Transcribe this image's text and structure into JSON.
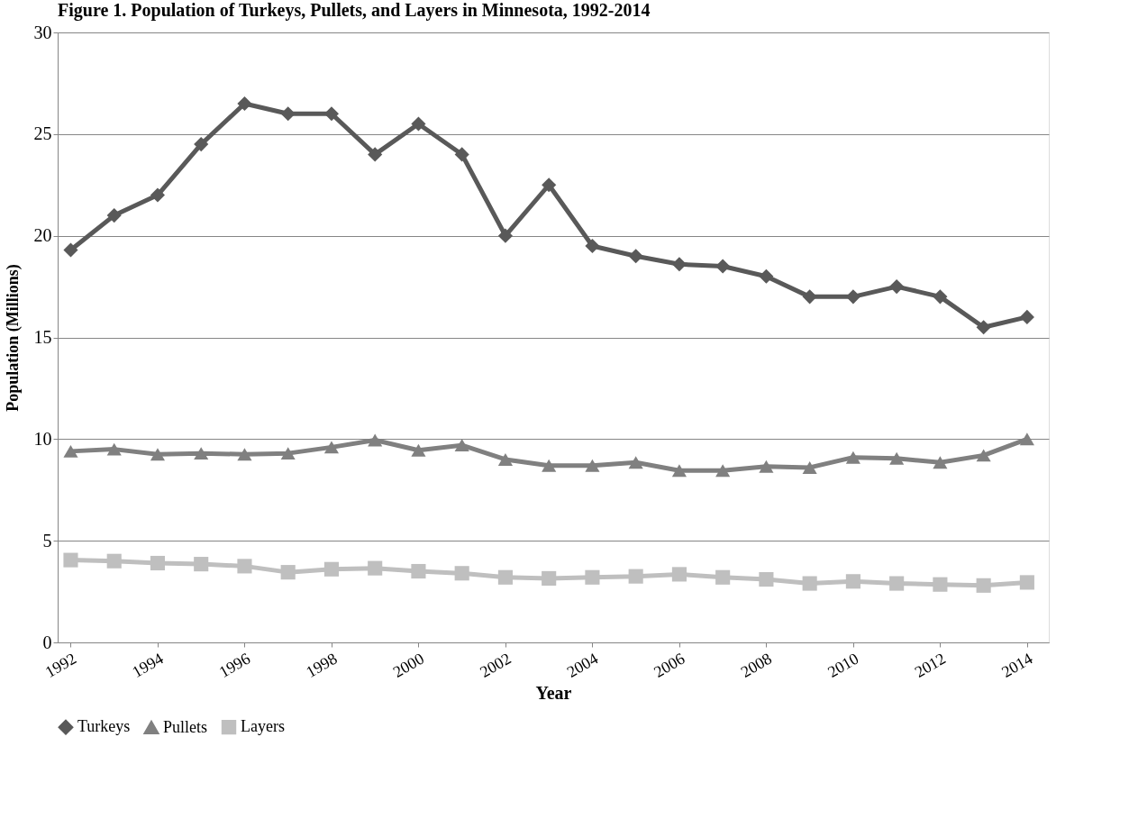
{
  "chart_data": {
    "type": "line",
    "title": "Figure 1. Population of Turkeys, Pullets, and Layers in Minnesota, 1992-2014",
    "xlabel": "Year",
    "ylabel": "Population (Millions)",
    "x": [
      1992,
      1993,
      1994,
      1995,
      1996,
      1997,
      1998,
      1999,
      2000,
      2001,
      2002,
      2003,
      2004,
      2005,
      2006,
      2007,
      2008,
      2009,
      2010,
      2011,
      2012,
      2013,
      2014
    ],
    "series": [
      {
        "name": "Turkeys",
        "color": "#595959",
        "marker": "diamond",
        "values": [
          19.3,
          21,
          22,
          24.5,
          26.5,
          26,
          26,
          24,
          25.5,
          24,
          20,
          22.5,
          19.5,
          19,
          18.6,
          18.5,
          18,
          17,
          17,
          17.5,
          17,
          15.5,
          16
        ]
      },
      {
        "name": "Pullets",
        "color": "#808080",
        "marker": "triangle",
        "values": [
          9.4,
          9.5,
          9.25,
          9.3,
          9.25,
          9.3,
          9.6,
          9.95,
          9.45,
          9.7,
          9.0,
          8.7,
          8.7,
          8.85,
          8.45,
          8.45,
          8.65,
          8.6,
          9.1,
          9.05,
          8.85,
          9.2,
          10.0
        ]
      },
      {
        "name": "Layers",
        "color": "#bfbfbf",
        "marker": "square",
        "values": [
          4.05,
          4.0,
          3.9,
          3.85,
          3.75,
          3.45,
          3.6,
          3.65,
          3.5,
          3.4,
          3.2,
          3.15,
          3.2,
          3.25,
          3.35,
          3.2,
          3.1,
          2.9,
          3.0,
          2.9,
          2.85,
          2.8,
          2.95
        ]
      }
    ],
    "xlim": [
      1991.7,
      2014.5
    ],
    "xticks": [
      1992,
      1994,
      1996,
      1998,
      2000,
      2002,
      2004,
      2006,
      2008,
      2010,
      2012,
      2014
    ],
    "ylim": [
      0,
      30
    ],
    "yticks": [
      0,
      5,
      10,
      15,
      20,
      25,
      30
    ],
    "grid": "y",
    "legend": "bottom",
    "line_style": "solid"
  }
}
